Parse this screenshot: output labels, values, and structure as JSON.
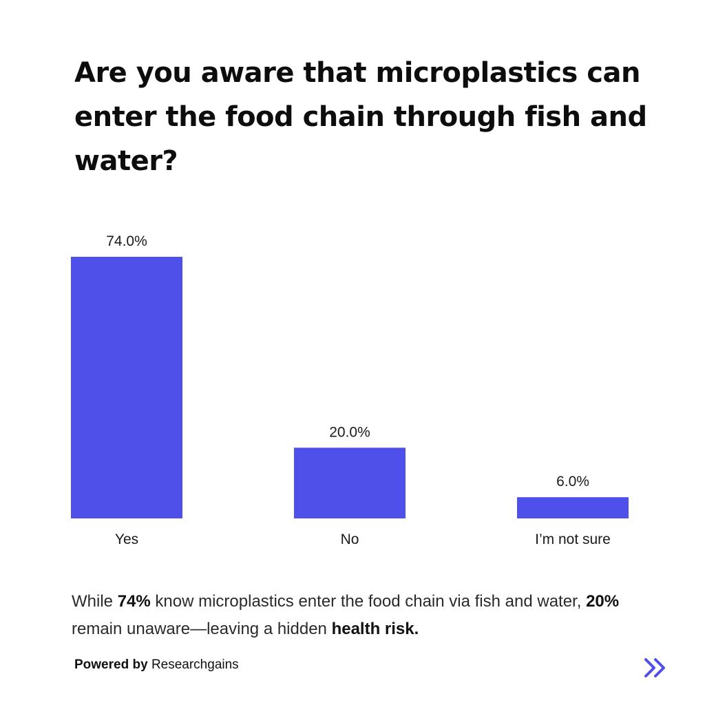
{
  "title": "Are you aware that microplastics can enter the food chain through fish and water?",
  "chart_data": {
    "type": "bar",
    "categories": [
      "Yes",
      "No",
      "I’m not sure"
    ],
    "values": [
      74.0,
      20.0,
      6.0
    ],
    "value_labels": [
      "74.0%",
      "20.0%",
      "6.0%"
    ],
    "ylim": [
      0,
      74
    ],
    "bar_color": "#4f4fea",
    "grid": false,
    "legend": "none"
  },
  "summary": {
    "t1": "While ",
    "b1": "74%",
    "t2": " know microplastics enter the food chain via fish and water, ",
    "b2": "20%",
    "t3": " remain unaware—leaving a hidden ",
    "b3": "health risk."
  },
  "footer": {
    "powered_by": "Powered by",
    "brand": "Researchgains"
  },
  "next_icon": "double-chevron-right-icon",
  "accent_color": "#4f4fea"
}
